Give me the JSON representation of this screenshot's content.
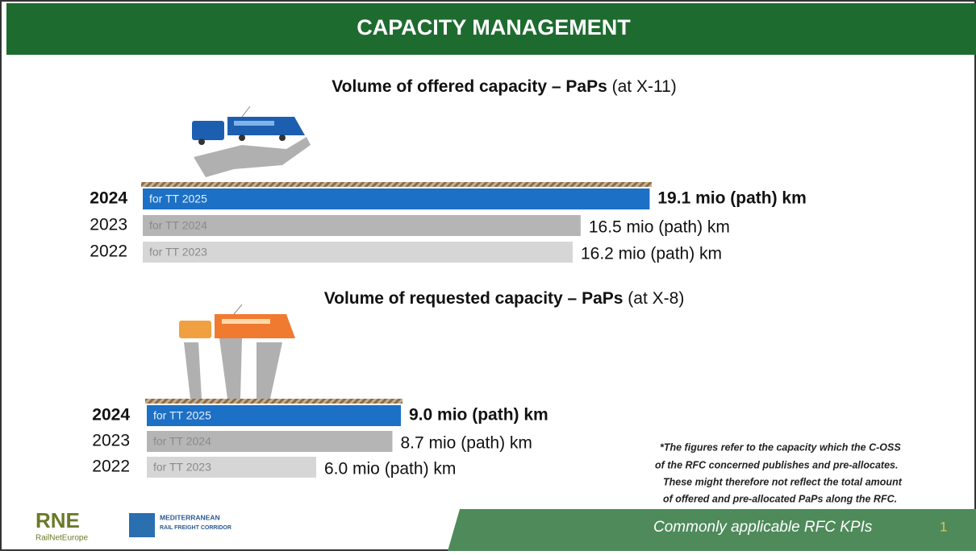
{
  "header": {
    "title": "CAPACITY MANAGEMENT"
  },
  "chart_data": [
    {
      "type": "bar",
      "orientation": "horizontal",
      "title": "Volume of offered capacity – PaPs",
      "title_note": "(at X-11)",
      "categories": [
        "2024",
        "2023",
        "2022"
      ],
      "bar_labels": [
        "for TT 2025",
        "for TT 2024",
        "for TT 2023"
      ],
      "values": [
        19.1,
        16.5,
        16.2
      ],
      "value_labels": [
        "19.1 mio (path) km",
        "16.5 mio (path) km",
        "16.2 mio (path) km"
      ],
      "colors": [
        "#1c70c6",
        "#b5b5b5",
        "#d6d6d6"
      ]
    },
    {
      "type": "bar",
      "orientation": "horizontal",
      "title": "Volume of requested capacity – PaPs",
      "title_note": "(at X-8)",
      "categories": [
        "2024",
        "2023",
        "2022"
      ],
      "bar_labels": [
        "for TT 2025",
        "for TT 2024",
        "for TT 2023"
      ],
      "values": [
        9.0,
        8.7,
        6.0
      ],
      "value_labels": [
        "9.0 mio (path) km",
        "8.7 mio (path) km",
        "6.0 mio (path) km"
      ],
      "colors": [
        "#1c70c6",
        "#b5b5b5",
        "#d6d6d6"
      ]
    }
  ],
  "footnote": [
    "*The figures refer to the capacity which the C-OSS",
    "of the RFC concerned publishes and pre-allocates.",
    "These might therefore not reflect the total amount",
    "of offered and pre-allocated PaPs along the RFC."
  ],
  "footer": {
    "text": "Commonly applicable RFC KPIs",
    "page": "1"
  },
  "logos": {
    "rne": "RNE",
    "rne_sub": "RailNetEurope",
    "corridor": "MEDITERRANEAN",
    "corridor_sub": "RAIL FREIGHT CORRIDOR"
  }
}
